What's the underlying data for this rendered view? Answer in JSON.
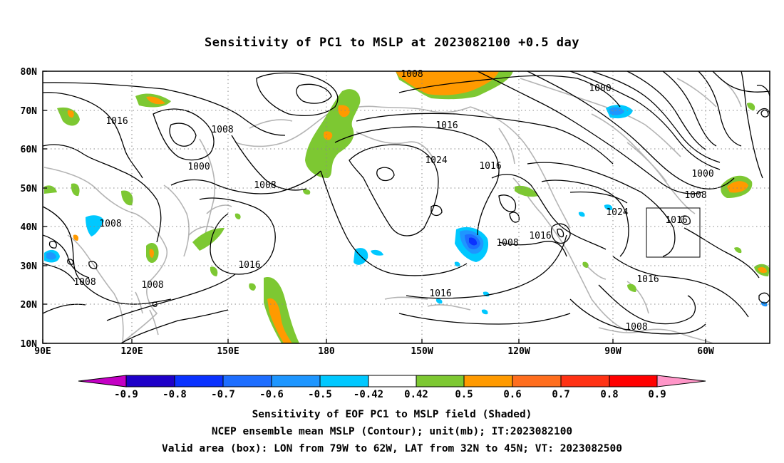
{
  "title": "Sensitivity of PC1 to MSLP at 2023082100 +0.5 day",
  "map": {
    "lat_labels": [
      "80N",
      "70N",
      "60N",
      "50N",
      "40N",
      "30N",
      "20N",
      "10N"
    ],
    "lon_labels": [
      "90E",
      "120E",
      "150E",
      "180",
      "150W",
      "120W",
      "90W",
      "60W"
    ],
    "contour_labels": [
      "1008",
      "1016",
      "1008",
      "1000",
      "1008",
      "1008",
      "1016",
      "1024",
      "1016",
      "1000",
      "1000",
      "1008",
      "1024",
      "1016",
      "1016",
      "1008",
      "1016",
      "1008",
      "1016",
      "1008",
      "1008"
    ],
    "grid": "dotted",
    "coastline_color": "#b4b4b4",
    "contour_color": "#000000"
  },
  "valid_box": {
    "lon_min": -79,
    "lon_max": -62,
    "lat_min": 32,
    "lat_max": 45
  },
  "colorbar": {
    "labels": [
      "-0.9",
      "-0.8",
      "-0.7",
      "-0.6",
      "-0.5",
      "-0.42",
      "0.42",
      "0.5",
      "0.6",
      "0.7",
      "0.8",
      "0.9"
    ],
    "colors": [
      "#c400c4",
      "#1e00c8",
      "#0a32ff",
      "#1e6eff",
      "#1e96ff",
      "#00c8ff",
      "#ffffff",
      "#7dc832",
      "#ff9a00",
      "#ff6e1e",
      "#ff3214",
      "#ff0000",
      "#ff96c8"
    ]
  },
  "captions": [
    "Sensitivity of EOF PC1 to MSLP field (Shaded)",
    "NCEP ensemble mean MSLP (Contour); unit(mb); IT:2023082100",
    "Valid area (box): LON from 79W to 62W, LAT from 32N to 45N; VT: 2023082500"
  ]
}
